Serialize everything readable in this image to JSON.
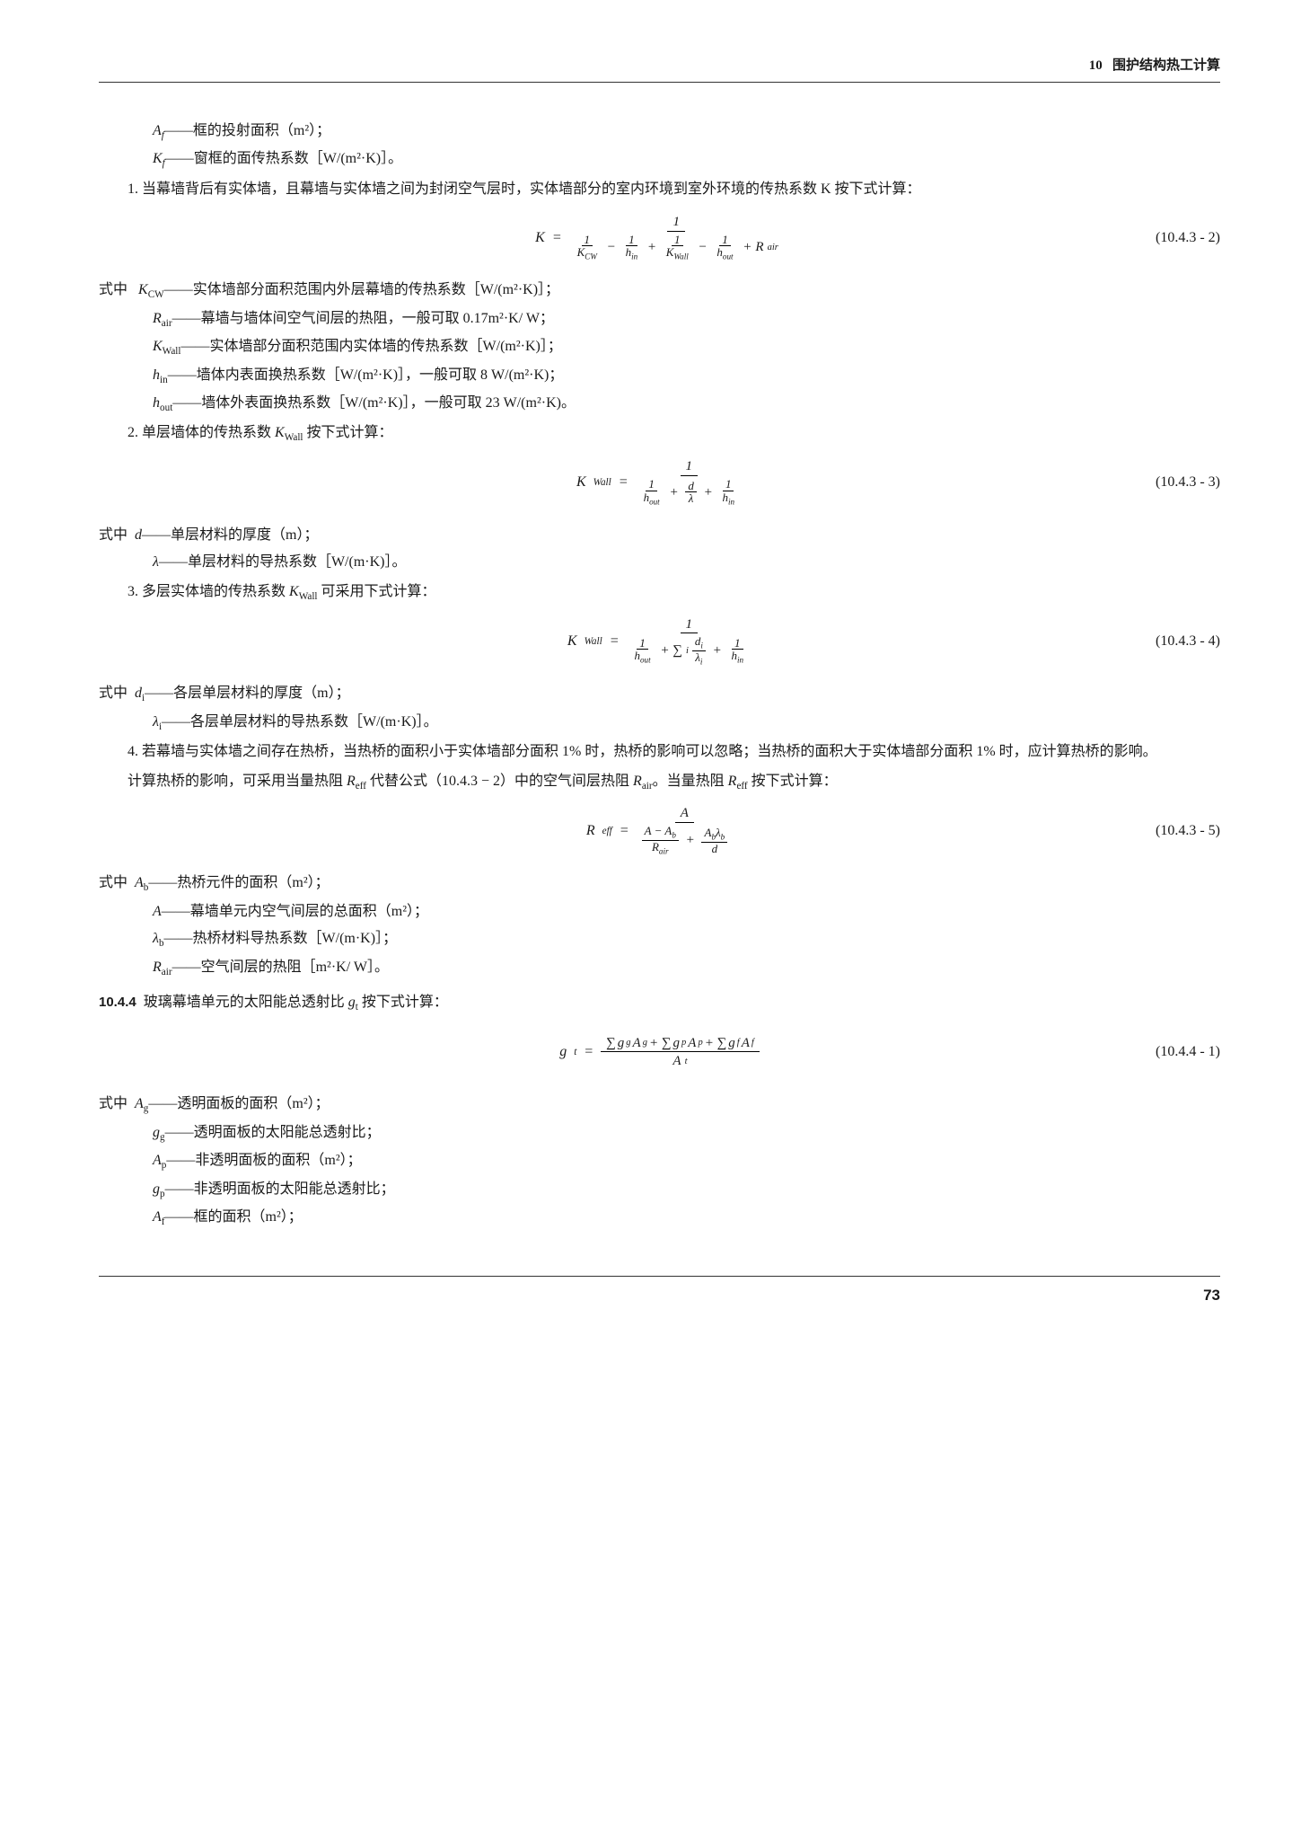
{
  "header": {
    "chapter": "10",
    "title": "围护结构热工计算"
  },
  "page_number": "73",
  "defs_top": [
    {
      "sym": "A_f",
      "text": "——框的投射面积（m²）；"
    },
    {
      "sym": "K_f",
      "text": "——窗框的面传热系数［W/(m²·K)］。"
    }
  ],
  "p1_lead": "1. 当幕墙背后有实体墙，且幕墙与实体墙之间为封闭空气层时，实体墙部分的室内环境到室外环境的传热系数 K 按下式计算：",
  "eq1": {
    "lhs": "K",
    "num": "(10.4.3 - 2)"
  },
  "where1_label": "式中",
  "where1": [
    {
      "sym": "K_CW",
      "text": "——实体墙部分面积范围内外层幕墙的传热系数［W/(m²·K)］；"
    },
    {
      "sym": "R_air",
      "text": "——幕墙与墙体间空气间层的热阻，一般可取 0.17m²·K/ W；"
    },
    {
      "sym": "K_Wall",
      "text": "——实体墙部分面积范围内实体墙的传热系数［W/(m²·K)］；"
    },
    {
      "sym": "h_in",
      "text": "——墙体内表面换热系数［W/(m²·K)］，一般可取 8 W/(m²·K)；"
    },
    {
      "sym": "h_out",
      "text": "——墙体外表面换热系数［W/(m²·K)］，一般可取 23 W/(m²·K)。"
    }
  ],
  "p2_lead": "2. 单层墙体的传热系数 K_Wall 按下式计算：",
  "eq2": {
    "lhs": "K_Wall",
    "num": "(10.4.3 - 3)"
  },
  "where2": [
    {
      "sym": "d",
      "text": "——单层材料的厚度（m）；"
    },
    {
      "sym": "λ",
      "text": "——单层材料的导热系数［W/(m·K)］。"
    }
  ],
  "p3_lead": "3. 多层实体墙的传热系数 K_Wall 可采用下式计算：",
  "eq3": {
    "lhs": "K_Wall",
    "num": "(10.4.3 - 4)"
  },
  "where3": [
    {
      "sym": "d_i",
      "text": "——各层单层材料的厚度（m）；"
    },
    {
      "sym": "λ_i",
      "text": "——各层单层材料的导热系数［W/(m·K)］。"
    }
  ],
  "p4a": "4. 若幕墙与实体墙之间存在热桥，当热桥的面积小于实体墙部分面积 1% 时，热桥的影响可以忽略；当热桥的面积大于实体墙部分面积 1% 时，应计算热桥的影响。",
  "p4b": "计算热桥的影响，可采用当量热阻 R_eff 代替公式（10.4.3 - 2）中的空气间层热阻 R_air。当量热阻 R_eff 按下式计算：",
  "eq4": {
    "lhs": "R_eff",
    "num": "(10.4.3 - 5)"
  },
  "where4": [
    {
      "sym": "A_b",
      "text": "——热桥元件的面积（m²）；"
    },
    {
      "sym": "A",
      "text": "——幕墙单元内空气间层的总面积（m²）；"
    },
    {
      "sym": "λ_b",
      "text": "——热桥材料导热系数［W/(m·K)］；"
    },
    {
      "sym": "R_air",
      "text": "——空气间层的热阻［m²·K/ W］。"
    }
  ],
  "sec_10_4_4": {
    "num": "10.4.4",
    "text": "玻璃幕墙单元的太阳能总透射比 g_t 按下式计算："
  },
  "eq5": {
    "lhs": "g_t",
    "num": "(10.4.4 - 1)"
  },
  "where5": [
    {
      "sym": "A_g",
      "text": "——透明面板的面积（m²）；"
    },
    {
      "sym": "g_g",
      "text": "——透明面板的太阳能总透射比；"
    },
    {
      "sym": "A_p",
      "text": "——非透明面板的面积（m²）；"
    },
    {
      "sym": "g_p",
      "text": "——非透明面板的太阳能总透射比；"
    },
    {
      "sym": "A_f",
      "text": "——框的面积（m²）；"
    }
  ]
}
